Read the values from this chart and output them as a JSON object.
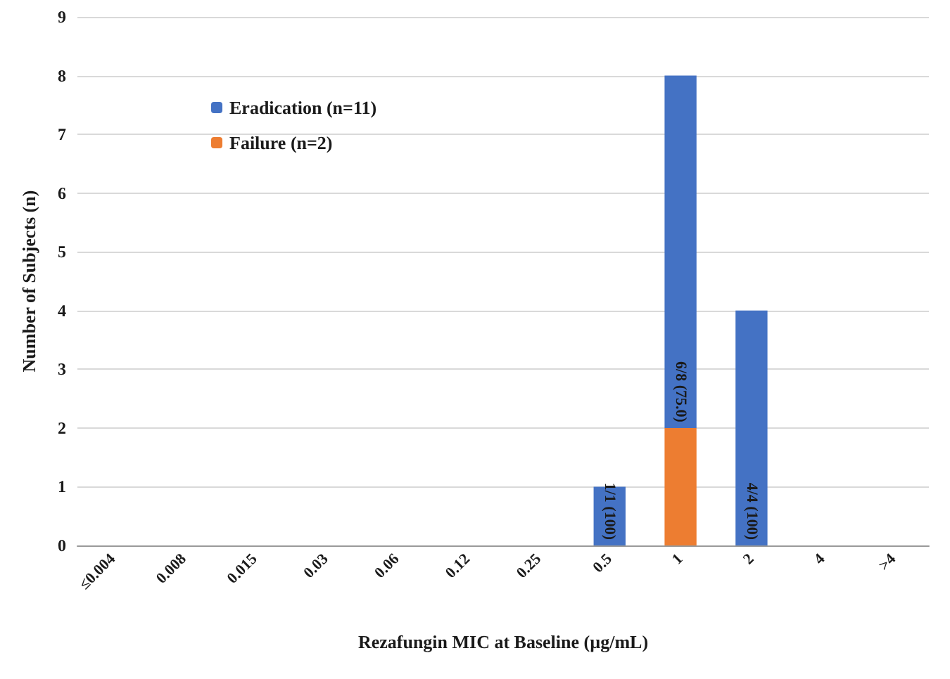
{
  "chart_data": {
    "type": "bar",
    "stacked": true,
    "xlabel": "Rezafungin MIC at Baseline (µg/mL)",
    "ylabel": "Number of Subjects (n)",
    "categories": [
      "≤0.004",
      "0.008",
      "0.015",
      "0.03",
      "0.06",
      "0.12",
      "0.25",
      "0.5",
      "1",
      "2",
      "4",
      ">4"
    ],
    "series": [
      {
        "name": "Failure (n=2)",
        "color": "#ed7d31",
        "values": [
          0,
          0,
          0,
          0,
          0,
          0,
          0,
          0,
          2,
          0,
          0,
          0
        ]
      },
      {
        "name": "Eradication (n=11)",
        "color": "#4472c4",
        "values": [
          0,
          0,
          0,
          0,
          0,
          0,
          0,
          1,
          6,
          4,
          0,
          0
        ],
        "value_labels": [
          null,
          null,
          null,
          null,
          null,
          null,
          null,
          "1/1 (100)",
          "6/8 (75.0)",
          "4/4 (100)",
          null,
          null
        ]
      }
    ],
    "ylim": [
      0,
      9
    ],
    "yticks": [
      0,
      1,
      2,
      3,
      4,
      5,
      6,
      7,
      8,
      9
    ],
    "grid": "y",
    "legend": "top left"
  }
}
